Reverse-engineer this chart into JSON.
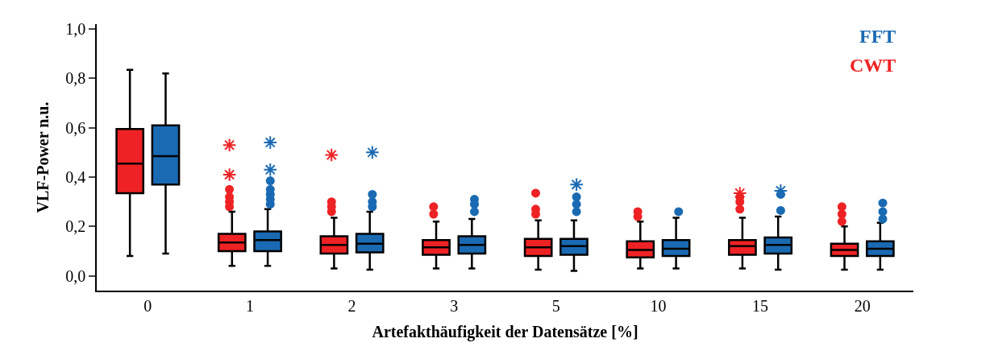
{
  "chart_data": {
    "type": "box",
    "xlabel": "Artefakthäufigkeit der Datensätze [%]",
    "ylabel": "VLF-Power n.u.",
    "categories": [
      "0",
      "1",
      "2",
      "3",
      "5",
      "10",
      "15",
      "20"
    ],
    "ylim": [
      -0.06,
      1.02
    ],
    "yticks": [
      {
        "value": 0,
        "label": "0,0"
      },
      {
        "value": 0.2,
        "label": "0,2"
      },
      {
        "value": 0.4,
        "label": "0,4"
      },
      {
        "value": 0.6,
        "label": "0,6"
      },
      {
        "value": 0.8,
        "label": "0,8"
      },
      {
        "value": 1.0,
        "label": "1,0"
      }
    ],
    "legend": "top right",
    "series": [
      {
        "name": "CWT",
        "color": "#ee2224",
        "boxes": [
          {
            "low": 0.08,
            "q1": 0.335,
            "median": 0.455,
            "q3": 0.595,
            "high": 0.835
          },
          {
            "low": 0.04,
            "q1": 0.1,
            "median": 0.135,
            "q3": 0.17,
            "high": 0.26,
            "outliers": [
              0.28,
              0.3,
              0.32,
              0.35
            ]
          },
          {
            "low": 0.03,
            "q1": 0.09,
            "median": 0.125,
            "q3": 0.16,
            "high": 0.235,
            "outliers": [
              0.26,
              0.28,
              0.3
            ]
          },
          {
            "low": 0.03,
            "q1": 0.085,
            "median": 0.115,
            "q3": 0.145,
            "high": 0.22,
            "outliers": [
              0.25,
              0.28
            ]
          },
          {
            "low": 0.025,
            "q1": 0.08,
            "median": 0.115,
            "q3": 0.15,
            "high": 0.225,
            "outliers": [
              0.25,
              0.27,
              0.335
            ]
          },
          {
            "low": 0.03,
            "q1": 0.075,
            "median": 0.105,
            "q3": 0.14,
            "high": 0.22,
            "outliers": [
              0.24,
              0.26
            ]
          },
          {
            "low": 0.03,
            "q1": 0.085,
            "median": 0.12,
            "q3": 0.145,
            "high": 0.235,
            "outliers": [
              0.27,
              0.3,
              0.32
            ]
          },
          {
            "low": 0.025,
            "q1": 0.08,
            "median": 0.105,
            "q3": 0.13,
            "high": 0.2,
            "outliers": [
              0.22,
              0.25,
              0.28
            ]
          }
        ]
      },
      {
        "name": "FFT",
        "color": "#1a6ab3",
        "boxes": [
          {
            "low": 0.09,
            "q1": 0.37,
            "median": 0.485,
            "q3": 0.61,
            "high": 0.82
          },
          {
            "low": 0.04,
            "q1": 0.1,
            "median": 0.145,
            "q3": 0.18,
            "high": 0.27,
            "outliers": [
              0.29,
              0.31,
              0.33,
              0.35,
              0.385
            ]
          },
          {
            "low": 0.025,
            "q1": 0.095,
            "median": 0.13,
            "q3": 0.17,
            "high": 0.26,
            "outliers": [
              0.28,
              0.3,
              0.33
            ]
          },
          {
            "low": 0.03,
            "q1": 0.09,
            "median": 0.125,
            "q3": 0.16,
            "high": 0.23,
            "outliers": [
              0.26,
              0.29,
              0.31
            ]
          },
          {
            "low": 0.02,
            "q1": 0.085,
            "median": 0.12,
            "q3": 0.15,
            "high": 0.225,
            "outliers": [
              0.26,
              0.29,
              0.32
            ]
          },
          {
            "low": 0.03,
            "q1": 0.08,
            "median": 0.11,
            "q3": 0.145,
            "high": 0.235,
            "outliers": [
              0.26
            ]
          },
          {
            "low": 0.025,
            "q1": 0.09,
            "median": 0.125,
            "q3": 0.155,
            "high": 0.24,
            "outliers": [
              0.265,
              0.33
            ]
          },
          {
            "low": 0.025,
            "q1": 0.08,
            "median": 0.11,
            "q3": 0.14,
            "high": 0.215,
            "outliers": [
              0.23,
              0.26,
              0.295
            ]
          }
        ]
      },
      {
        "type": "scatter",
        "marker": "cross",
        "color": "#ee2224",
        "x": [
          "1",
          "1",
          "2",
          "15"
        ],
        "values": [
          0.53,
          0.41,
          0.49,
          0.335
        ]
      },
      {
        "type": "scatter",
        "marker": "cross",
        "color": "#1a6ab3",
        "x": [
          "1",
          "1",
          "2",
          "5",
          "15"
        ],
        "values": [
          0.54,
          0.43,
          0.5,
          0.37,
          0.345
        ]
      }
    ]
  }
}
